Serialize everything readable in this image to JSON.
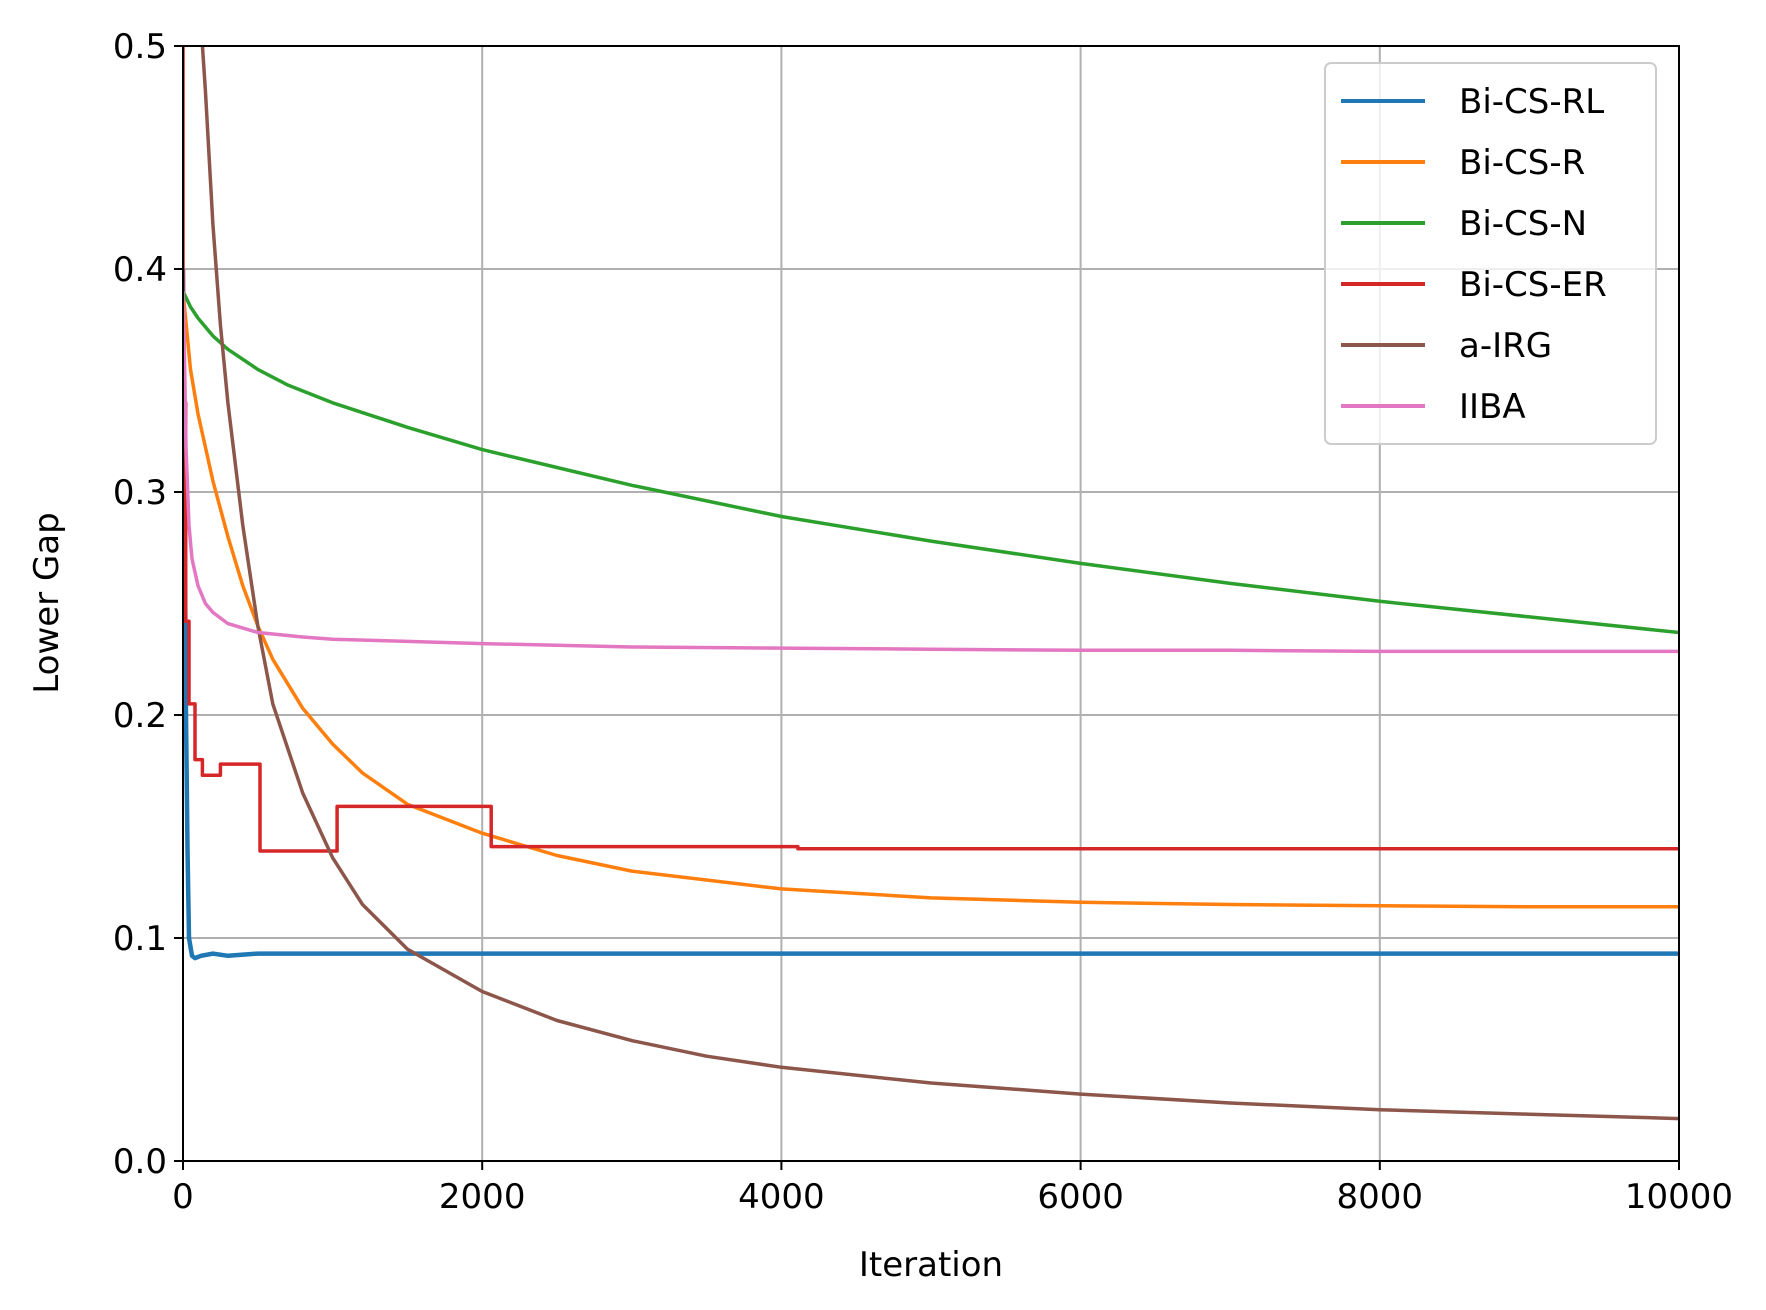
{
  "chart_data": {
    "type": "line",
    "title": "",
    "xlabel": "Iteration",
    "ylabel": "Lower Gap",
    "xlim": [
      0,
      10000
    ],
    "ylim": [
      0.0,
      0.5
    ],
    "xticks": [
      0,
      2000,
      4000,
      6000,
      8000,
      10000
    ],
    "xtick_labels": [
      "0",
      "2000",
      "4000",
      "6000",
      "8000",
      "10000"
    ],
    "yticks": [
      0.0,
      0.1,
      0.2,
      0.3,
      0.4,
      0.5
    ],
    "ytick_labels": [
      "0.0",
      "0.1",
      "0.2",
      "0.3",
      "0.4",
      "0.5"
    ],
    "grid": true,
    "legend_position": "top-right",
    "series": [
      {
        "name": "Bi-CS-RL",
        "color": "#1f77b4",
        "x": [
          0,
          10,
          20,
          30,
          40,
          60,
          80,
          120,
          200,
          300,
          500,
          1000,
          2000,
          4000,
          6000,
          8000,
          10000
        ],
        "y": [
          0.4,
          0.3,
          0.2,
          0.14,
          0.1,
          0.092,
          0.091,
          0.092,
          0.093,
          0.092,
          0.093,
          0.093,
          0.093,
          0.093,
          0.093,
          0.093,
          0.093
        ]
      },
      {
        "name": "Bi-CS-R",
        "color": "#ff7f0e",
        "x": [
          0,
          50,
          100,
          200,
          300,
          400,
          500,
          600,
          800,
          1000,
          1200,
          1500,
          2000,
          2500,
          3000,
          4000,
          5000,
          6000,
          7000,
          8000,
          9000,
          10000
        ],
        "y": [
          0.39,
          0.355,
          0.335,
          0.305,
          0.28,
          0.258,
          0.24,
          0.225,
          0.203,
          0.187,
          0.174,
          0.16,
          0.147,
          0.137,
          0.13,
          0.122,
          0.118,
          0.116,
          0.115,
          0.1145,
          0.114,
          0.114
        ]
      },
      {
        "name": "Bi-CS-N",
        "color": "#2ca02c",
        "x": [
          0,
          50,
          100,
          200,
          300,
          500,
          700,
          1000,
          1500,
          2000,
          2500,
          3000,
          4000,
          5000,
          6000,
          7000,
          8000,
          9000,
          10000
        ],
        "y": [
          0.39,
          0.383,
          0.378,
          0.37,
          0.364,
          0.355,
          0.348,
          0.34,
          0.329,
          0.319,
          0.311,
          0.303,
          0.289,
          0.278,
          0.268,
          0.259,
          0.251,
          0.244,
          0.237
        ]
      },
      {
        "name": "Bi-CS-ER",
        "color": "#d62728",
        "x": [
          0,
          0,
          18,
          18,
          40,
          40,
          80,
          80,
          130,
          130,
          250,
          250,
          515,
          515,
          1030,
          1030,
          2060,
          2060,
          4110,
          4110,
          8210,
          8210,
          10000
        ],
        "y": [
          0.5,
          0.34,
          0.34,
          0.242,
          0.242,
          0.205,
          0.205,
          0.18,
          0.18,
          0.173,
          0.173,
          0.178,
          0.178,
          0.139,
          0.139,
          0.159,
          0.159,
          0.141,
          0.141,
          0.14,
          0.14,
          0.14,
          0.14
        ]
      },
      {
        "name": "a-IRG",
        "color": "#8c564b",
        "x": [
          0,
          100,
          150,
          200,
          250,
          300,
          400,
          500,
          600,
          800,
          1000,
          1200,
          1500,
          2000,
          2500,
          3000,
          3500,
          4000,
          5000,
          6000,
          7000,
          8000,
          9000,
          10000
        ],
        "y": [
          0.56,
          0.53,
          0.48,
          0.42,
          0.375,
          0.34,
          0.285,
          0.24,
          0.205,
          0.165,
          0.136,
          0.115,
          0.095,
          0.076,
          0.063,
          0.054,
          0.047,
          0.042,
          0.035,
          0.03,
          0.026,
          0.023,
          0.021,
          0.019
        ]
      },
      {
        "name": "IIBA",
        "color": "#e377c2",
        "x": [
          0,
          10,
          20,
          40,
          60,
          100,
          150,
          200,
          300,
          500,
          800,
          1000,
          1500,
          2000,
          3000,
          4000,
          5000,
          6000,
          7000,
          8000,
          9000,
          10000
        ],
        "y": [
          0.39,
          0.36,
          0.32,
          0.285,
          0.27,
          0.258,
          0.25,
          0.246,
          0.241,
          0.237,
          0.235,
          0.234,
          0.233,
          0.232,
          0.2305,
          0.23,
          0.2295,
          0.229,
          0.229,
          0.2285,
          0.2285,
          0.2285
        ]
      }
    ]
  }
}
